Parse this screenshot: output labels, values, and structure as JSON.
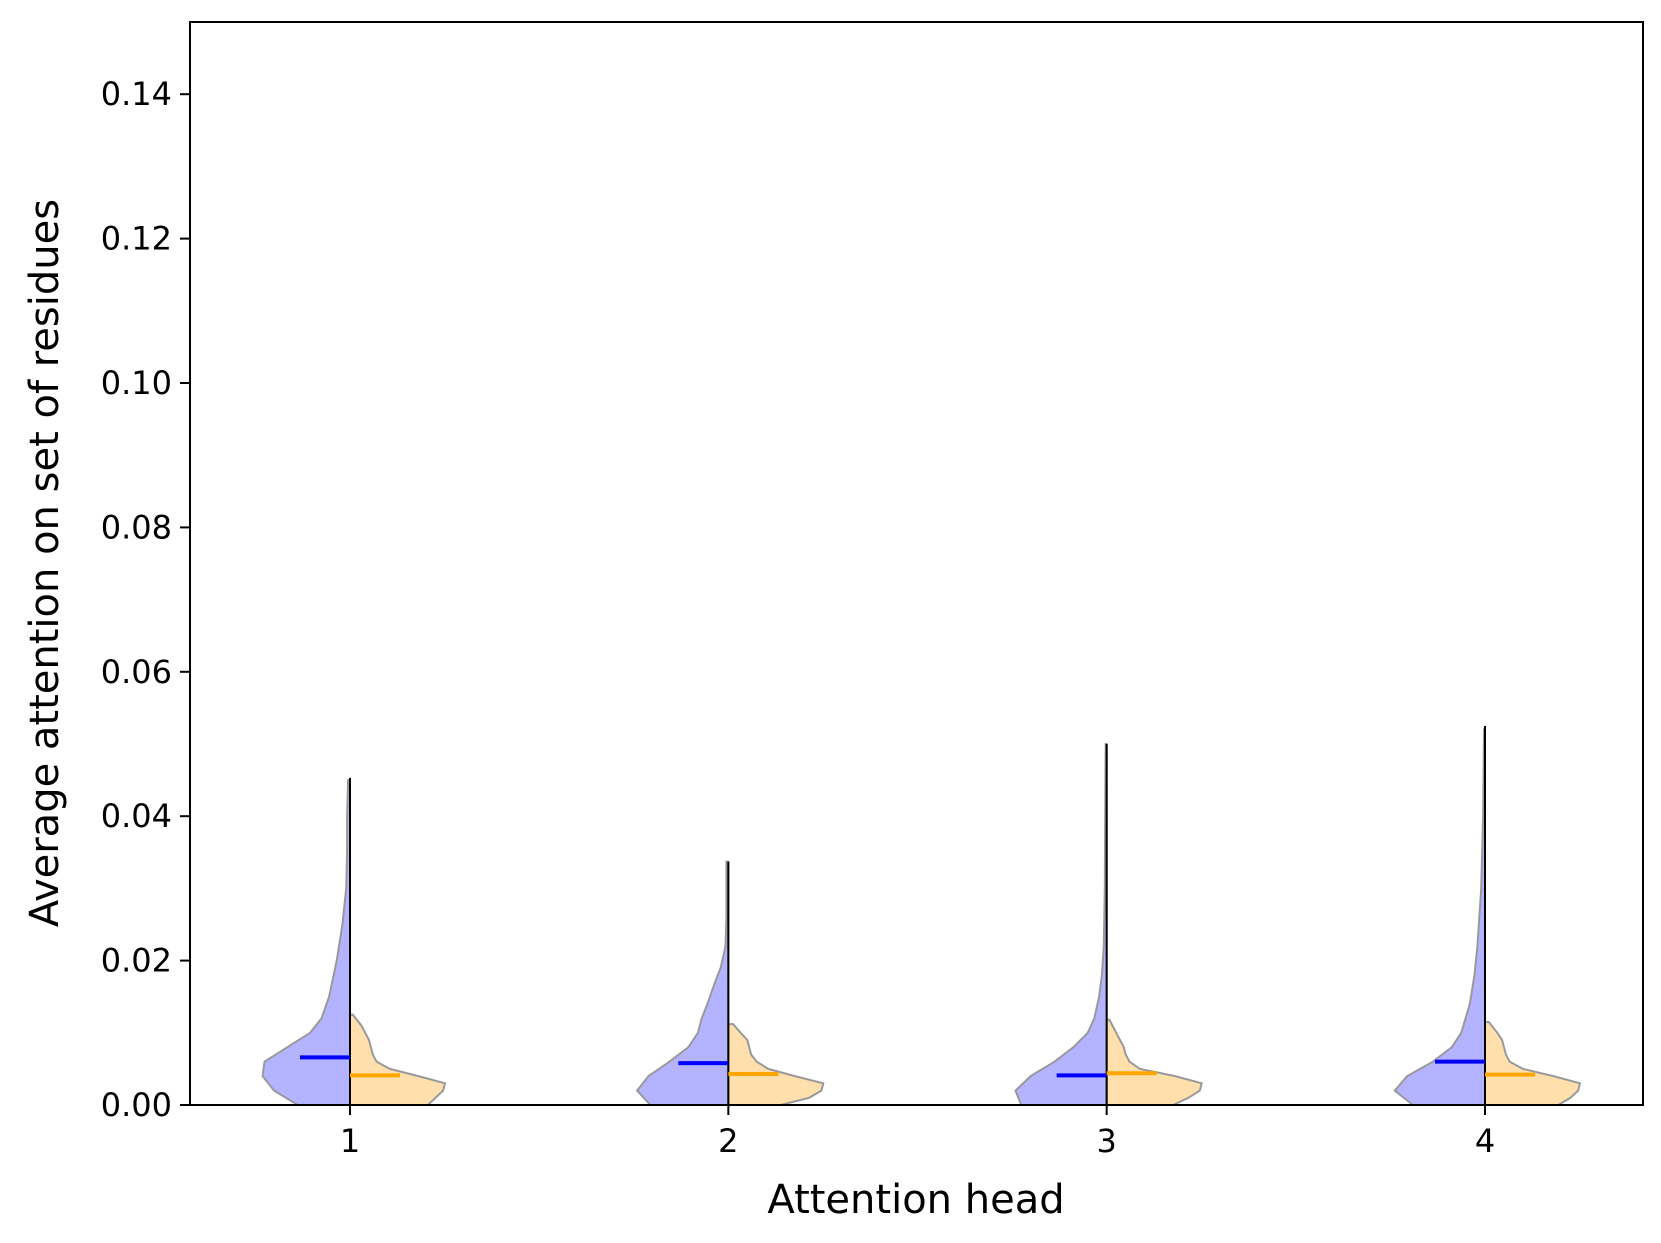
{
  "chart_data": {
    "type": "violin",
    "split": true,
    "title": "",
    "xlabel": "Attention head",
    "ylabel": "Average attention on set of residues",
    "categories": [
      "1",
      "2",
      "3",
      "4"
    ],
    "ylim": [
      0.0,
      0.15
    ],
    "yticks": [
      "0.00",
      "0.02",
      "0.04",
      "0.06",
      "0.08",
      "0.10",
      "0.12",
      "0.14"
    ],
    "grid": false,
    "legend": null,
    "colors": {
      "left_fill": "#b3b3ff",
      "left_median": "#0000ff",
      "right_fill": "#ffe0ad",
      "right_median": "#ffa500",
      "outline": "#999999",
      "center_line": "#000000"
    },
    "series": [
      {
        "side": "left",
        "color": "#0000ff",
        "medians": [
          0.0066,
          0.0058,
          0.0041,
          0.006
        ],
        "maxima": [
          0.0453,
          0.0337,
          0.05,
          0.0525
        ],
        "profiles": [
          [
            [
              0.0,
              0.55
            ],
            [
              0.002,
              0.8
            ],
            [
              0.004,
              0.92
            ],
            [
              0.006,
              0.9
            ],
            [
              0.008,
              0.66
            ],
            [
              0.01,
              0.42
            ],
            [
              0.012,
              0.3
            ],
            [
              0.015,
              0.22
            ],
            [
              0.02,
              0.14
            ],
            [
              0.025,
              0.08
            ],
            [
              0.03,
              0.04
            ],
            [
              0.035,
              0.03
            ],
            [
              0.04,
              0.03
            ],
            [
              0.045,
              0.02
            ]
          ],
          [
            [
              0.0,
              0.82
            ],
            [
              0.002,
              0.96
            ],
            [
              0.004,
              0.84
            ],
            [
              0.006,
              0.62
            ],
            [
              0.008,
              0.42
            ],
            [
              0.01,
              0.32
            ],
            [
              0.012,
              0.28
            ],
            [
              0.014,
              0.22
            ],
            [
              0.017,
              0.14
            ],
            [
              0.019,
              0.08
            ],
            [
              0.022,
              0.03
            ],
            [
              0.026,
              0.02
            ],
            [
              0.03,
              0.02
            ],
            [
              0.0337,
              0.02
            ]
          ],
          [
            [
              0.0,
              0.9
            ],
            [
              0.002,
              0.96
            ],
            [
              0.004,
              0.8
            ],
            [
              0.006,
              0.55
            ],
            [
              0.008,
              0.35
            ],
            [
              0.01,
              0.2
            ],
            [
              0.012,
              0.13
            ],
            [
              0.015,
              0.08
            ],
            [
              0.018,
              0.05
            ],
            [
              0.022,
              0.03
            ],
            [
              0.03,
              0.02
            ],
            [
              0.04,
              0.015
            ],
            [
              0.05,
              0.01
            ]
          ],
          [
            [
              0.0,
              0.76
            ],
            [
              0.002,
              0.95
            ],
            [
              0.004,
              0.82
            ],
            [
              0.006,
              0.55
            ],
            [
              0.008,
              0.35
            ],
            [
              0.01,
              0.25
            ],
            [
              0.014,
              0.16
            ],
            [
              0.018,
              0.11
            ],
            [
              0.022,
              0.08
            ],
            [
              0.03,
              0.04
            ],
            [
              0.04,
              0.02
            ],
            [
              0.052,
              0.01
            ]
          ]
        ]
      },
      {
        "side": "right",
        "color": "#ffa500",
        "medians": [
          0.0041,
          0.0043,
          0.0044,
          0.0042
        ],
        "maxima": [
          0.0125,
          0.0112,
          0.0118,
          0.0115
        ],
        "profiles": [
          [
            [
              0.0,
              0.82
            ],
            [
              0.001,
              0.9
            ],
            [
              0.002,
              0.98
            ],
            [
              0.003,
              1.0
            ],
            [
              0.004,
              0.72
            ],
            [
              0.005,
              0.42
            ],
            [
              0.006,
              0.28
            ],
            [
              0.007,
              0.24
            ],
            [
              0.008,
              0.22
            ],
            [
              0.009,
              0.2
            ],
            [
              0.01,
              0.16
            ],
            [
              0.011,
              0.12
            ],
            [
              0.0125,
              0.03
            ]
          ],
          [
            [
              0.0,
              0.55
            ],
            [
              0.001,
              0.85
            ],
            [
              0.002,
              0.98
            ],
            [
              0.003,
              1.0
            ],
            [
              0.004,
              0.7
            ],
            [
              0.005,
              0.42
            ],
            [
              0.006,
              0.3
            ],
            [
              0.007,
              0.24
            ],
            [
              0.008,
              0.22
            ],
            [
              0.009,
              0.2
            ],
            [
              0.01,
              0.13
            ],
            [
              0.0112,
              0.05
            ]
          ],
          [
            [
              0.0,
              0.7
            ],
            [
              0.001,
              0.86
            ],
            [
              0.002,
              0.98
            ],
            [
              0.003,
              1.0
            ],
            [
              0.004,
              0.72
            ],
            [
              0.005,
              0.35
            ],
            [
              0.006,
              0.24
            ],
            [
              0.007,
              0.2
            ],
            [
              0.008,
              0.18
            ],
            [
              0.009,
              0.14
            ],
            [
              0.01,
              0.1
            ],
            [
              0.0118,
              0.03
            ]
          ],
          [
            [
              0.0,
              0.77
            ],
            [
              0.001,
              0.9
            ],
            [
              0.002,
              0.98
            ],
            [
              0.003,
              1.0
            ],
            [
              0.004,
              0.72
            ],
            [
              0.005,
              0.4
            ],
            [
              0.006,
              0.26
            ],
            [
              0.007,
              0.22
            ],
            [
              0.008,
              0.2
            ],
            [
              0.009,
              0.18
            ],
            [
              0.01,
              0.13
            ],
            [
              0.0115,
              0.04
            ]
          ]
        ]
      }
    ]
  }
}
